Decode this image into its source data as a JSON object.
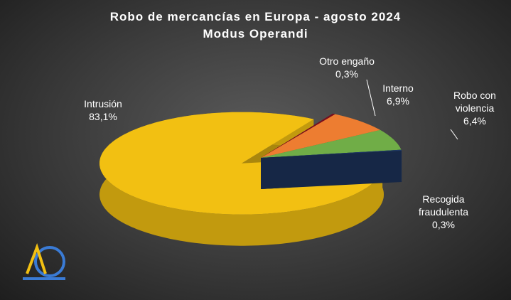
{
  "chart_data": {
    "type": "pie3d",
    "title": "Robo de mercancías en Europa - agosto 2024",
    "subtitle": "Modus Operandi",
    "categories": [
      "Intrusión",
      "Otro engaño",
      "Interno",
      "Robo con violencia",
      "Recogida fraudulenta"
    ],
    "values": [
      83.1,
      0.3,
      6.9,
      6.4,
      0.3
    ],
    "value_labels": [
      "83,1%",
      "0,3%",
      "6,9%",
      "6,4%",
      "0,3%"
    ],
    "colors": [
      "#f2c012",
      "#7a0d1e",
      "#ed7d31",
      "#70ad47",
      "#1f3864"
    ]
  }
}
